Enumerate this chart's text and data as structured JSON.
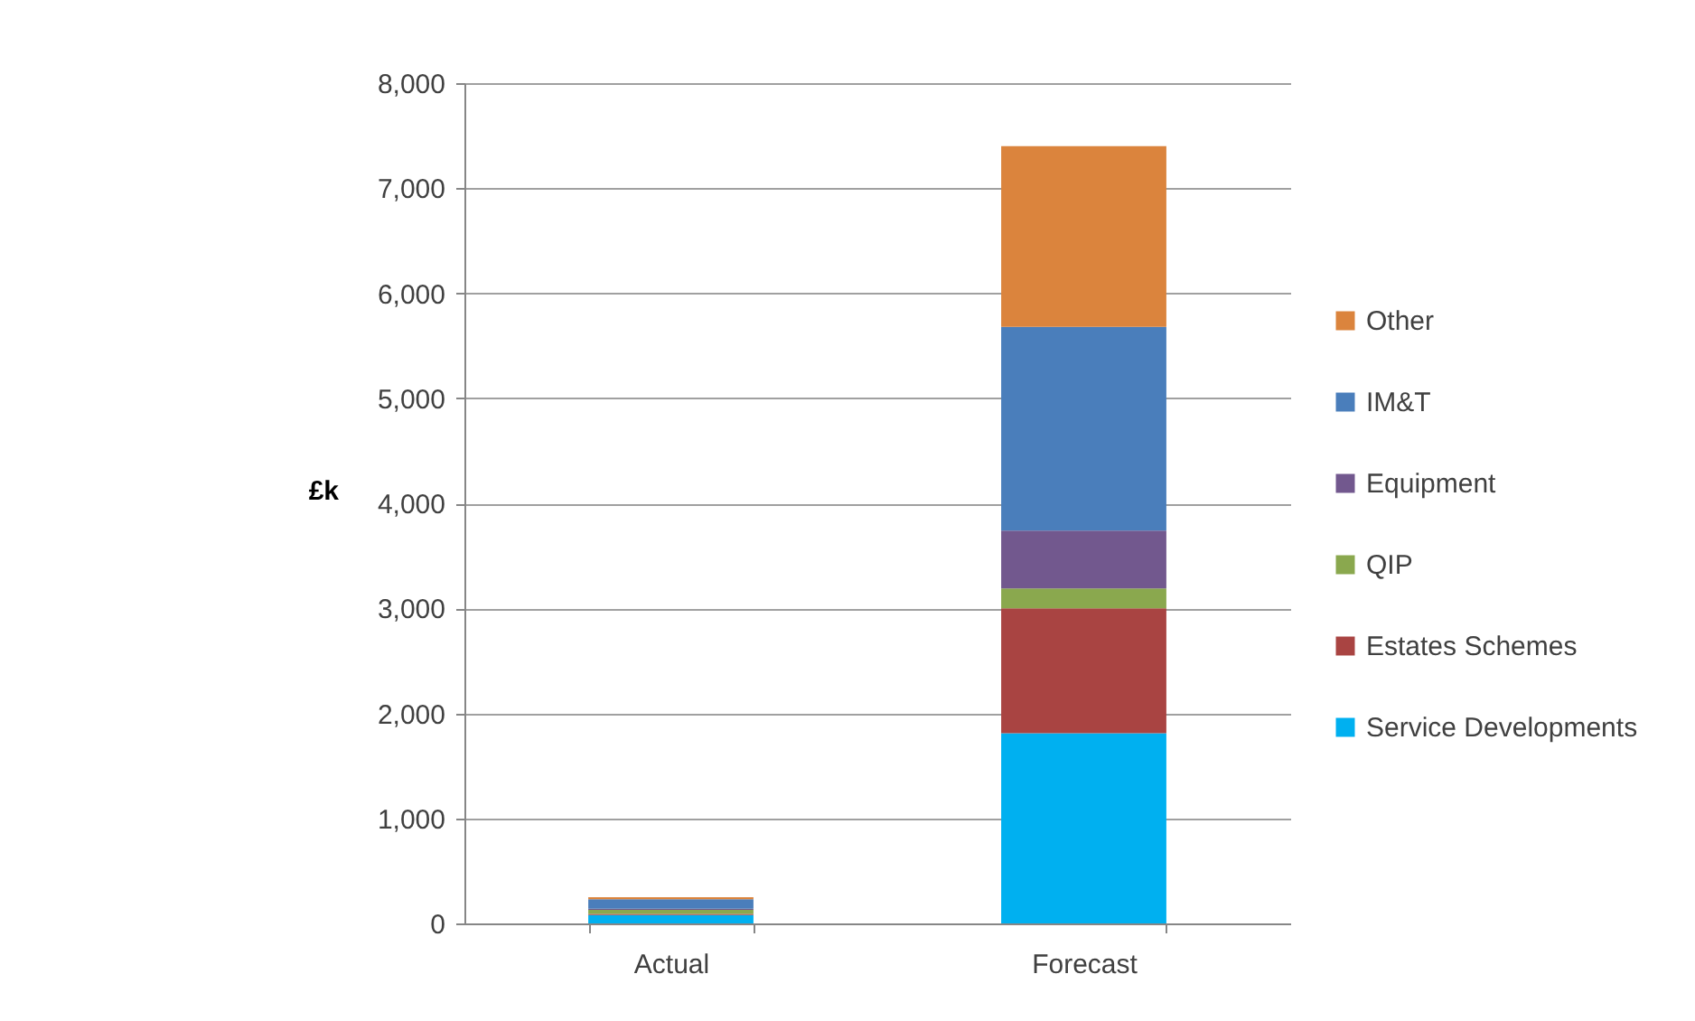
{
  "chart_data": {
    "type": "bar",
    "stacked": true,
    "ylabel": "£k",
    "categories": [
      "Actual",
      "Forecast"
    ],
    "series": [
      {
        "name": "Service Developments",
        "color": "#00b0f0",
        "values": [
          80,
          1810
        ]
      },
      {
        "name": "Estates Schemes",
        "color": "#a94442",
        "values": [
          10,
          1190
        ]
      },
      {
        "name": "QIP",
        "color": "#8aa84e",
        "values": [
          40,
          190
        ]
      },
      {
        "name": "Equipment",
        "color": "#72588e",
        "values": [
          10,
          550
        ]
      },
      {
        "name": "IM&T",
        "color": "#4a7ebb",
        "values": [
          90,
          1940
        ]
      },
      {
        "name": "Other",
        "color": "#db843d",
        "values": [
          20,
          1720
        ]
      }
    ],
    "ylim": [
      0,
      8000
    ],
    "yticks": [
      0,
      {
        "value": 1000,
        "label": "1,000"
      },
      {
        "value": 2000,
        "label": "2,000"
      },
      {
        "value": 3000,
        "label": "3,000"
      },
      {
        "value": 4000,
        "label": "4,000"
      },
      {
        "value": 5000,
        "label": "5,000"
      },
      {
        "value": 6000,
        "label": "6,000"
      },
      {
        "value": 7000,
        "label": "7,000"
      },
      {
        "value": 8000,
        "label": "8,000"
      }
    ],
    "grid": "y",
    "legend": "right"
  }
}
